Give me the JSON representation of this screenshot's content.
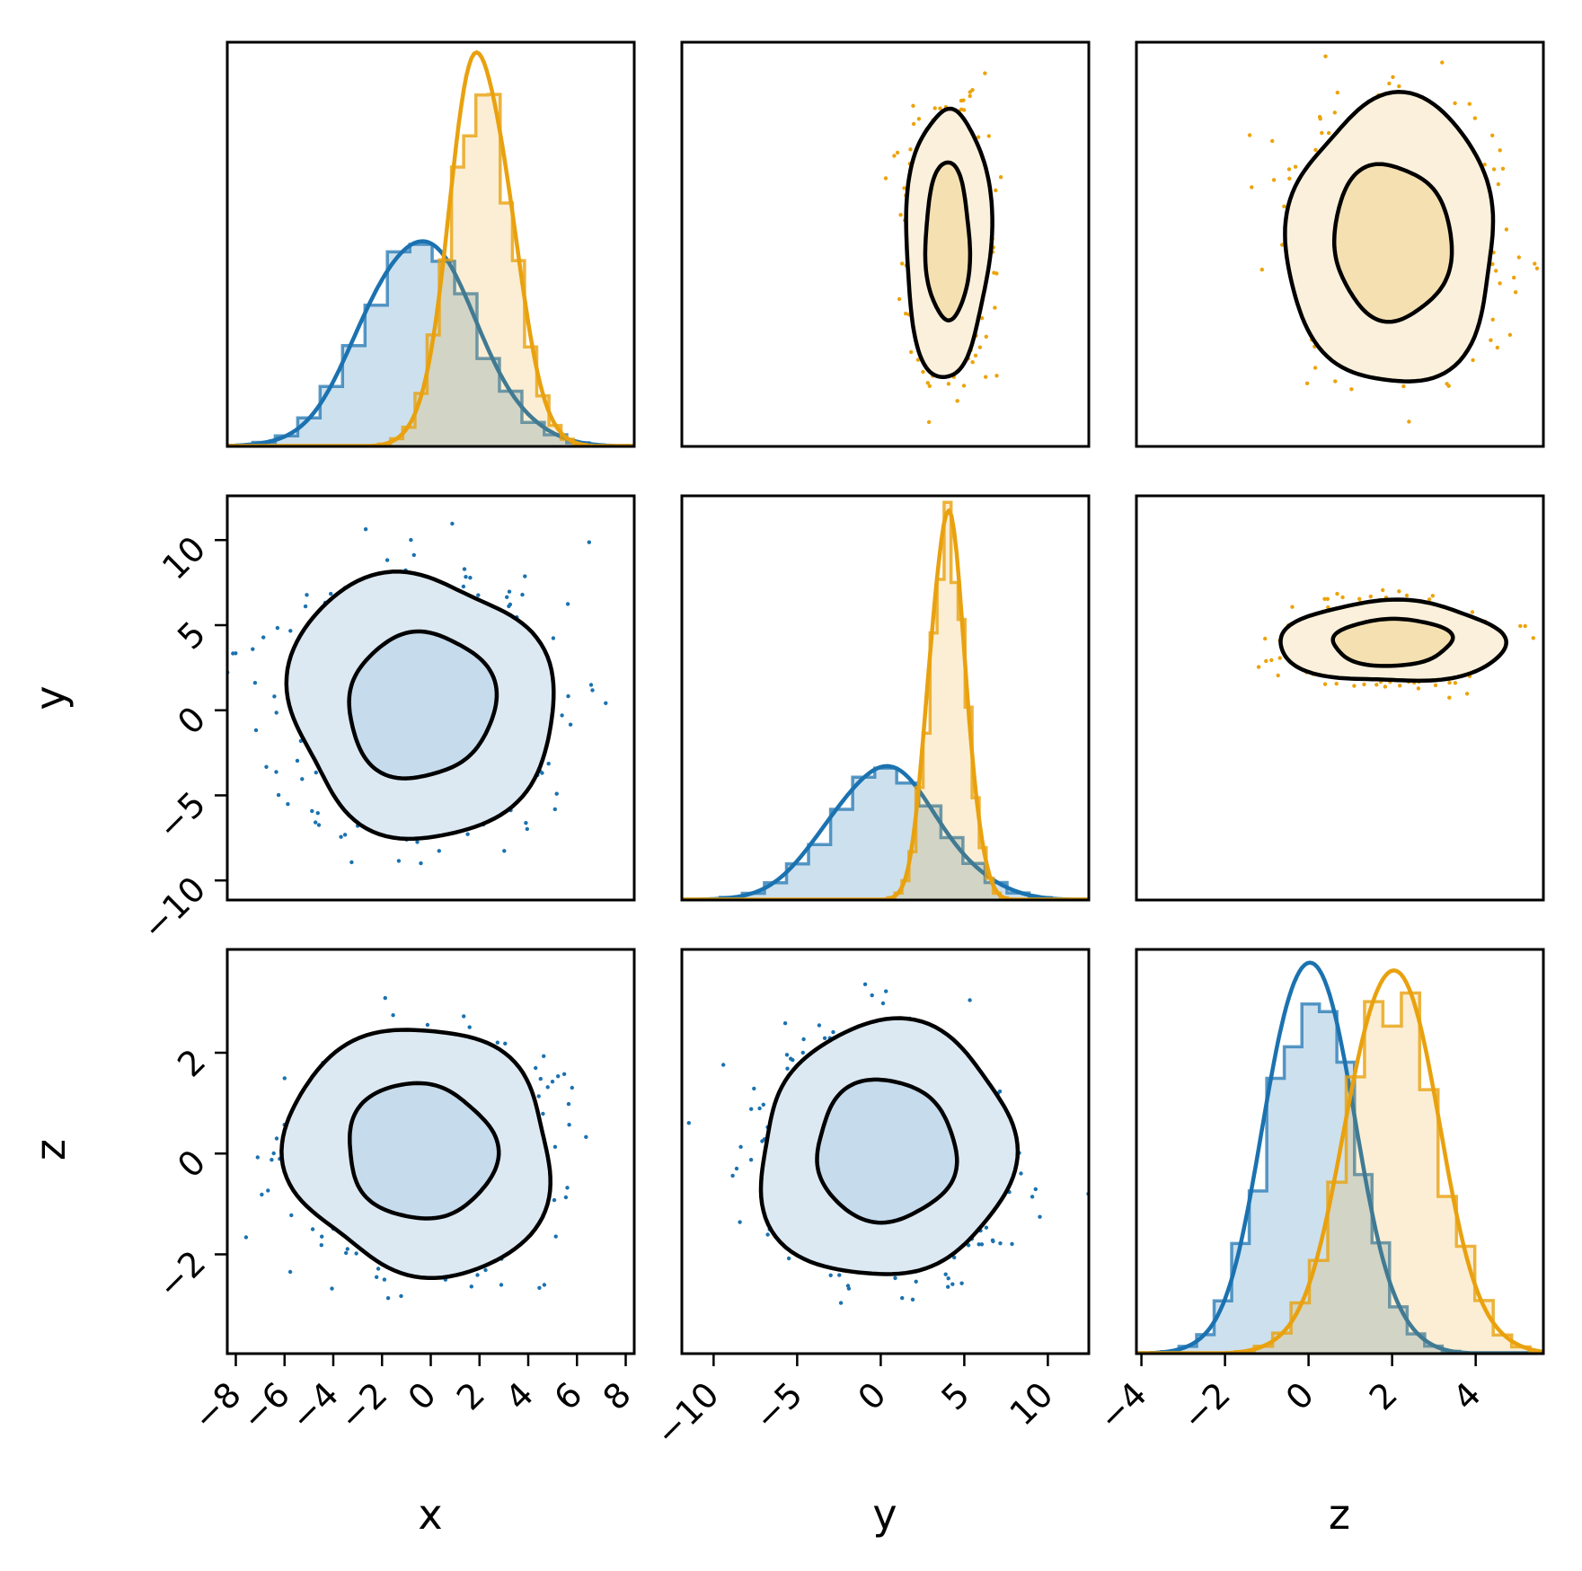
{
  "figure": {
    "background": "#ffffff",
    "frame_color": "#000000"
  },
  "chart_data": {
    "type": "scatter",
    "variant": "corner-pairplot-3x3",
    "title": "",
    "variables": [
      "x",
      "y",
      "z"
    ],
    "axis_titles": {
      "bottom": [
        "x",
        "y",
        "z"
      ],
      "left": [
        "y",
        "z"
      ]
    },
    "grid": [
      [
        "hist-x",
        "contour-orange",
        "contour-orange"
      ],
      [
        "contour-blue",
        "hist-y",
        "contour-orange"
      ],
      [
        "contour-blue",
        "contour-blue",
        "hist-z"
      ]
    ],
    "col_ranges": {
      "x": [
        -8.35,
        8.35
      ],
      "y": [
        -11.9,
        12.45
      ],
      "z": [
        -4.12,
        5.62
      ]
    },
    "row_ranges": {
      "x": [
        -2.25,
        6.35
      ],
      "y": [
        -11.15,
        12.6
      ],
      "z": [
        -3.97,
        4.05
      ]
    },
    "bottom_ticks": {
      "x": [
        -8,
        -6,
        -4,
        -2,
        0,
        2,
        4,
        6,
        8
      ],
      "y": [
        -10,
        -5,
        0,
        5,
        10
      ],
      "z": [
        -4,
        -2,
        0,
        2,
        4
      ]
    },
    "left_ticks": {
      "y": [
        10,
        5,
        0,
        -5,
        -10
      ],
      "z": [
        2,
        0,
        -2
      ]
    },
    "series": [
      {
        "key": "blue",
        "name": "series-blue",
        "triangle": "lower",
        "n_points": 1000,
        "color": "#1b72b0",
        "dot_color": "#1b72b0",
        "hist_fill": "rgba(27,114,176,0.22)",
        "step_stroke": "rgba(27,114,176,0.72)",
        "contour_fill_outer": "#dce9f3",
        "contour_fill_inner": "#c6dbec",
        "stats": {
          "x": {
            "mean": -0.4,
            "sd": 2.3
          },
          "y": {
            "mean": 0.3,
            "sd": 3.3
          },
          "z": {
            "mean": 0.05,
            "sd": 1.05
          }
        }
      },
      {
        "key": "orange",
        "name": "series-orange",
        "triangle": "upper",
        "n_points": 1000,
        "color": "#e9a10e",
        "dot_color": "#eca30a",
        "hist_fill": "rgba(233,161,14,0.18)",
        "step_stroke": "rgba(233,161,14,0.80)",
        "contour_fill_outer": "#faf0db",
        "contour_fill_inner": "#f5e0b2",
        "stats": {
          "x": {
            "mean": 2.1,
            "sd": 1.25
          },
          "y": {
            "mean": 4.0,
            "sd": 1.05
          },
          "z": {
            "mean": 2.0,
            "sd": 1.1
          }
        }
      }
    ],
    "contour_levels_sigma": [
      1.3,
      2.35
    ],
    "contour_line_color": "#000000",
    "diagonal_peaks": {
      "x": {
        "blue": 0.5,
        "orange": 0.95
      },
      "y": {
        "blue": 0.32,
        "orange": 0.96
      },
      "z": {
        "blue": 0.94,
        "orange": 0.91
      }
    },
    "legend": "none",
    "grid_lines": "off"
  }
}
